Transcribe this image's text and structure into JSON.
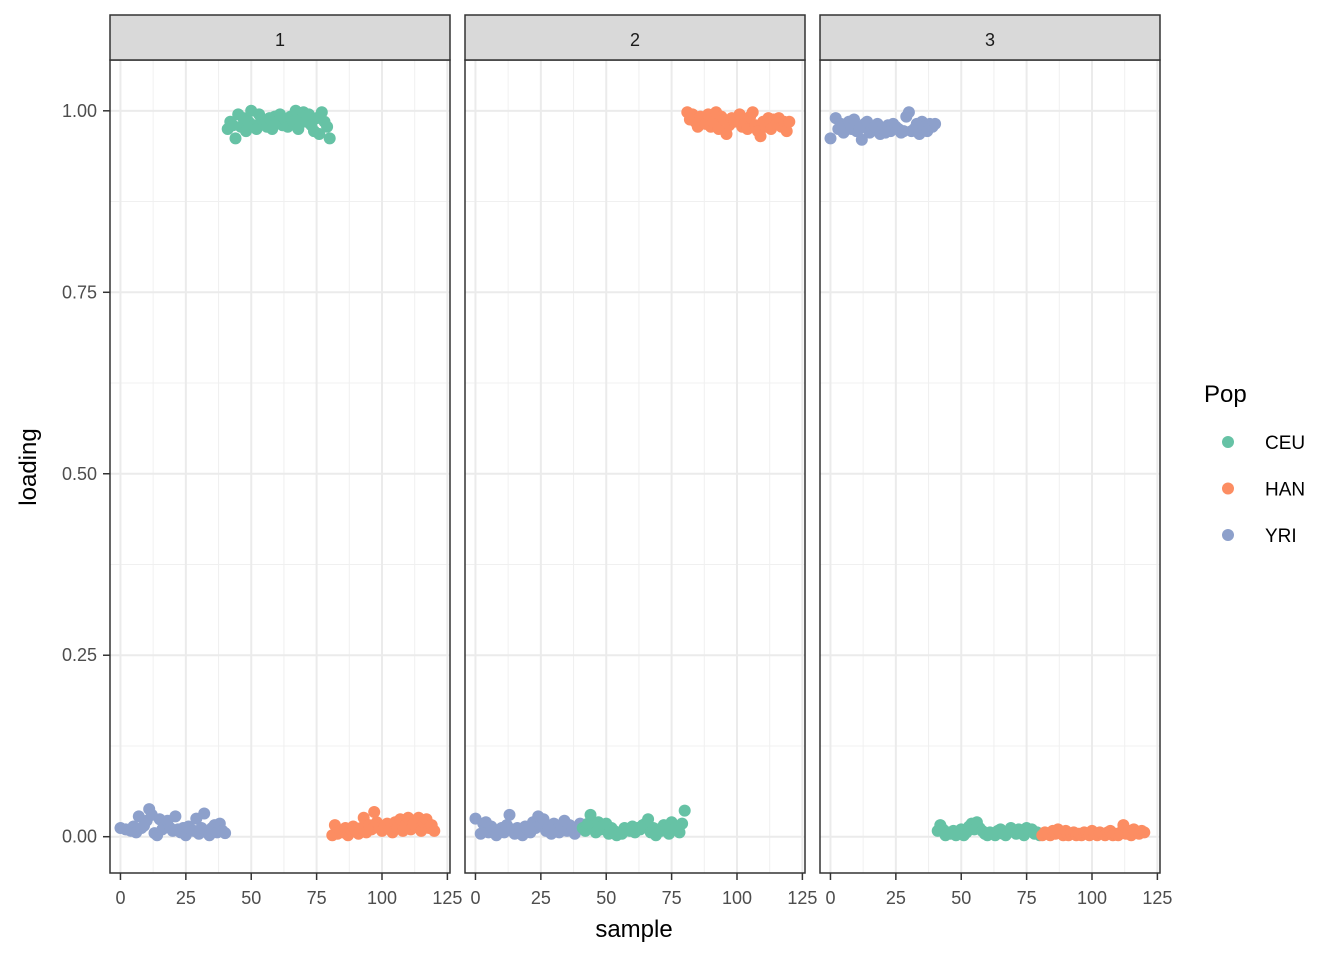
{
  "chart_data": {
    "type": "scatter",
    "xlabel": "sample",
    "ylabel": "loading",
    "xlim": [
      -4,
      126
    ],
    "ylim": [
      -0.05,
      1.07
    ],
    "x_ticks": [
      0,
      25,
      50,
      75,
      100,
      125
    ],
    "x_tick_labels": [
      "0",
      "25",
      "50",
      "75",
      "100",
      "125"
    ],
    "y_ticks": [
      0,
      0.25,
      0.5,
      0.75,
      1.0
    ],
    "y_tick_labels": [
      "0.00",
      "0.25",
      "0.50",
      "0.75",
      "1.00"
    ],
    "grid": true,
    "legend": {
      "title": "Pop",
      "position": "right",
      "entries": [
        {
          "label": "CEU",
          "color": "#66c2a5"
        },
        {
          "label": "HAN",
          "color": "#fc8d62"
        },
        {
          "label": "YRI",
          "color": "#8da0cb"
        }
      ]
    },
    "facets": [
      {
        "label": "1",
        "series": [
          {
            "name": "YRI",
            "x": [
              0,
              2,
              4,
              5,
              6,
              7,
              8,
              9,
              10,
              11,
              12,
              13,
              14,
              15,
              16,
              17,
              18,
              19,
              20,
              21,
              22,
              23,
              24,
              25,
              26,
              27,
              28,
              29,
              30,
              31,
              32,
              33,
              34,
              35,
              36,
              37,
              38,
              39,
              40
            ],
            "y": [
              0.012,
              0.01,
              0.008,
              0.014,
              0.006,
              0.028,
              0.012,
              0.015,
              0.022,
              0.038,
              0.03,
              0.005,
              0.002,
              0.024,
              0.01,
              0.014,
              0.022,
              0.012,
              0.008,
              0.028,
              0.01,
              0.006,
              0.012,
              0.002,
              0.014,
              0.01,
              0.008,
              0.025,
              0.004,
              0.012,
              0.032,
              0.006,
              0.002,
              0.012,
              0.016,
              0.006,
              0.018,
              0.008,
              0.005
            ]
          },
          {
            "name": "CEU",
            "x": [
              41,
              42,
              43,
              44,
              45,
              46,
              47,
              48,
              49,
              50,
              51,
              52,
              53,
              54,
              55,
              56,
              57,
              58,
              59,
              60,
              61,
              62,
              63,
              64,
              65,
              66,
              67,
              68,
              69,
              70,
              71,
              72,
              73,
              74,
              75,
              76,
              77,
              78,
              79,
              80
            ],
            "y": [
              0.975,
              0.985,
              0.98,
              0.962,
              0.995,
              0.978,
              0.99,
              0.972,
              0.985,
              1.0,
              0.98,
              0.975,
              0.995,
              0.988,
              0.982,
              0.978,
              0.99,
              0.975,
              0.992,
              0.985,
              0.995,
              0.98,
              0.988,
              0.978,
              0.992,
              0.985,
              1.0,
              0.975,
              0.988,
              0.998,
              0.985,
              0.995,
              0.98,
              0.972,
              0.99,
              0.968,
              0.998,
              0.985,
              0.978,
              0.962
            ]
          },
          {
            "name": "HAN",
            "x": [
              81,
              82,
              83,
              84,
              85,
              86,
              87,
              88,
              89,
              90,
              91,
              92,
              93,
              94,
              95,
              96,
              97,
              98,
              99,
              100,
              101,
              102,
              103,
              104,
              105,
              106,
              107,
              108,
              109,
              110,
              111,
              112,
              113,
              114,
              115,
              116,
              117,
              118,
              119,
              120
            ],
            "y": [
              0.002,
              0.016,
              0.004,
              0.008,
              0.006,
              0.012,
              0.002,
              0.01,
              0.014,
              0.008,
              0.004,
              0.012,
              0.026,
              0.006,
              0.016,
              0.01,
              0.034,
              0.02,
              0.012,
              0.008,
              0.014,
              0.018,
              0.01,
              0.006,
              0.02,
              0.012,
              0.024,
              0.008,
              0.016,
              0.026,
              0.01,
              0.018,
              0.014,
              0.026,
              0.008,
              0.02,
              0.024,
              0.012,
              0.016,
              0.008
            ]
          }
        ]
      },
      {
        "label": "2",
        "series": [
          {
            "name": "YRI",
            "x": [
              0,
              2,
              3,
              4,
              5,
              6,
              7,
              8,
              9,
              10,
              11,
              12,
              13,
              14,
              15,
              16,
              17,
              18,
              19,
              20,
              21,
              22,
              23,
              24,
              25,
              26,
              27,
              28,
              29,
              30,
              31,
              32,
              33,
              34,
              35,
              36,
              37,
              38,
              39,
              40
            ],
            "y": [
              0.025,
              0.004,
              0.018,
              0.02,
              0.006,
              0.014,
              0.01,
              0.002,
              0.008,
              0.012,
              0.006,
              0.016,
              0.03,
              0.01,
              0.004,
              0.012,
              0.008,
              0.002,
              0.014,
              0.01,
              0.006,
              0.02,
              0.012,
              0.028,
              0.016,
              0.024,
              0.008,
              0.012,
              0.004,
              0.018,
              0.01,
              0.006,
              0.014,
              0.022,
              0.008,
              0.016,
              0.012,
              0.004,
              0.01,
              0.018
            ]
          },
          {
            "name": "CEU",
            "x": [
              41,
              42,
              43,
              44,
              45,
              46,
              47,
              48,
              49,
              50,
              51,
              52,
              53,
              54,
              55,
              56,
              57,
              58,
              59,
              60,
              61,
              62,
              63,
              64,
              65,
              66,
              67,
              68,
              69,
              70,
              71,
              72,
              73,
              74,
              75,
              76,
              77,
              78,
              79,
              80
            ],
            "y": [
              0.012,
              0.008,
              0.018,
              0.03,
              0.014,
              0.006,
              0.02,
              0.01,
              0.016,
              0.018,
              0.004,
              0.012,
              0.008,
              0.002,
              0.006,
              0.004,
              0.012,
              0.01,
              0.008,
              0.014,
              0.006,
              0.012,
              0.01,
              0.016,
              0.018,
              0.024,
              0.006,
              0.012,
              0.002,
              0.01,
              0.008,
              0.016,
              0.012,
              0.004,
              0.02,
              0.01,
              0.014,
              0.006,
              0.018,
              0.036
            ]
          },
          {
            "name": "HAN",
            "x": [
              81,
              82,
              83,
              84,
              85,
              86,
              87,
              88,
              89,
              90,
              91,
              92,
              93,
              94,
              95,
              96,
              97,
              98,
              99,
              100,
              101,
              102,
              103,
              104,
              105,
              106,
              107,
              108,
              109,
              110,
              111,
              112,
              113,
              114,
              115,
              116,
              117,
              118,
              119,
              120
            ],
            "y": [
              0.998,
              0.988,
              0.995,
              0.985,
              0.978,
              0.992,
              0.988,
              0.982,
              0.995,
              0.978,
              0.985,
              0.998,
              0.975,
              0.992,
              0.988,
              0.968,
              0.98,
              0.99,
              0.985,
              0.988,
              0.995,
              0.978,
              0.982,
              0.975,
              0.992,
              0.998,
              0.98,
              0.972,
              0.965,
              0.985,
              0.978,
              0.99,
              0.975,
              0.988,
              0.982,
              0.99,
              0.978,
              0.985,
              0.972,
              0.985
            ]
          }
        ]
      },
      {
        "label": "3",
        "series": [
          {
            "name": "YRI",
            "x": [
              0,
              2,
              3,
              4,
              5,
              6,
              7,
              8,
              9,
              10,
              11,
              12,
              13,
              14,
              15,
              16,
              17,
              18,
              19,
              20,
              21,
              22,
              23,
              24,
              25,
              26,
              27,
              28,
              29,
              30,
              31,
              32,
              33,
              34,
              35,
              36,
              37,
              38,
              39,
              40
            ],
            "y": [
              0.962,
              0.99,
              0.975,
              0.982,
              0.97,
              0.978,
              0.985,
              0.975,
              0.988,
              0.972,
              0.975,
              0.96,
              0.982,
              0.985,
              0.97,
              0.975,
              0.978,
              0.982,
              0.968,
              0.975,
              0.97,
              0.98,
              0.972,
              0.982,
              0.978,
              0.975,
              0.97,
              0.972,
              0.992,
              0.998,
              0.972,
              0.975,
              0.982,
              0.968,
              0.985,
              0.978,
              0.972,
              0.982,
              0.978,
              0.982
            ]
          },
          {
            "name": "CEU",
            "x": [
              41,
              42,
              43,
              44,
              45,
              46,
              47,
              48,
              49,
              50,
              51,
              52,
              53,
              54,
              55,
              56,
              57,
              58,
              59,
              60,
              61,
              62,
              63,
              64,
              65,
              66,
              67,
              68,
              69,
              70,
              71,
              72,
              73,
              74,
              75,
              76,
              77,
              78,
              79,
              80
            ],
            "y": [
              0.008,
              0.016,
              0.01,
              0.002,
              0.006,
              0.004,
              0.008,
              0.002,
              0.004,
              0.01,
              0.002,
              0.006,
              0.014,
              0.018,
              0.01,
              0.02,
              0.012,
              0.008,
              0.004,
              0.002,
              0.006,
              0.004,
              0.002,
              0.008,
              0.01,
              0.004,
              0.002,
              0.006,
              0.012,
              0.008,
              0.004,
              0.01,
              0.006,
              0.002,
              0.012,
              0.008,
              0.01,
              0.004,
              0.006,
              0.002
            ]
          },
          {
            "name": "HAN",
            "x": [
              81,
              82,
              83,
              84,
              85,
              86,
              87,
              88,
              89,
              90,
              91,
              92,
              93,
              94,
              95,
              96,
              97,
              98,
              99,
              100,
              101,
              102,
              103,
              104,
              105,
              106,
              107,
              108,
              109,
              110,
              111,
              112,
              113,
              114,
              115,
              116,
              117,
              118,
              119,
              120
            ],
            "y": [
              0.002,
              0.006,
              0.004,
              0.002,
              0.008,
              0.004,
              0.01,
              0.006,
              0.002,
              0.008,
              0.002,
              0.004,
              0.006,
              0.002,
              0.004,
              0.002,
              0.006,
              0.004,
              0.002,
              0.008,
              0.004,
              0.002,
              0.006,
              0.004,
              0.002,
              0.006,
              0.008,
              0.002,
              0.004,
              0.002,
              0.006,
              0.016,
              0.004,
              0.008,
              0.002,
              0.01,
              0.006,
              0.004,
              0.008,
              0.006
            ]
          }
        ]
      }
    ]
  }
}
